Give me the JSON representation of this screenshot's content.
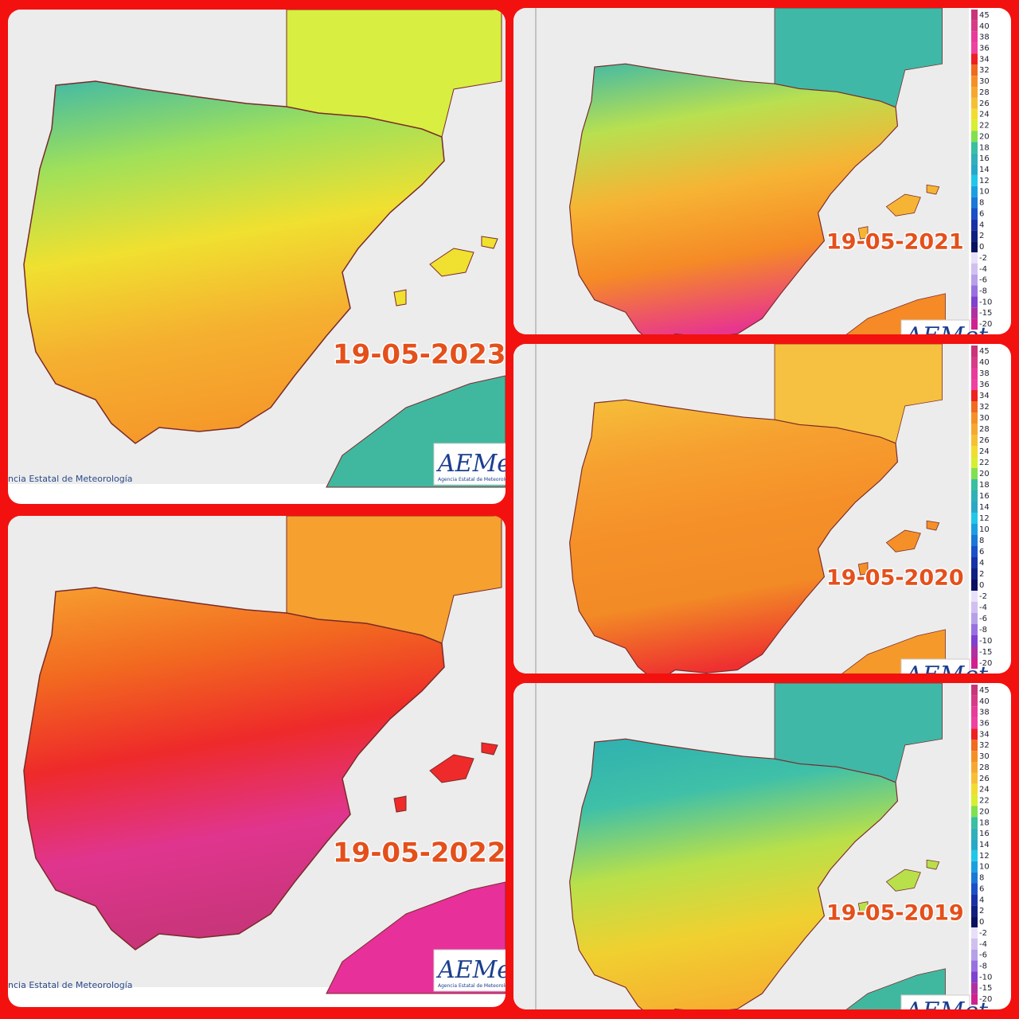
{
  "maps": [
    {
      "date": "19-05-2023",
      "logo": "AEMet",
      "logo_sub": "Agencia Estatal de Meteorología",
      "credit": "ncia Estatal de Meteorología"
    },
    {
      "date": "19-05-2022",
      "logo": "AEMet",
      "logo_sub": "Agencia Estatal de Meteorología",
      "credit": "ncia Estatal de Meteorología"
    },
    {
      "date": "19-05-2021",
      "logo": "AEMet"
    },
    {
      "date": "19-05-2020",
      "logo": "AEMet"
    },
    {
      "date": "19-05-2019",
      "logo": "AEMet"
    }
  ],
  "legend": {
    "labels": [
      "45",
      "40",
      "38",
      "36",
      "34",
      "32",
      "30",
      "28",
      "26",
      "24",
      "22",
      "20",
      "18",
      "16",
      "14",
      "12",
      "10",
      "8",
      "6",
      "4",
      "2",
      "0",
      "-2",
      "-4",
      "-6",
      "-8",
      "-10",
      "-15",
      "-20"
    ]
  }
}
